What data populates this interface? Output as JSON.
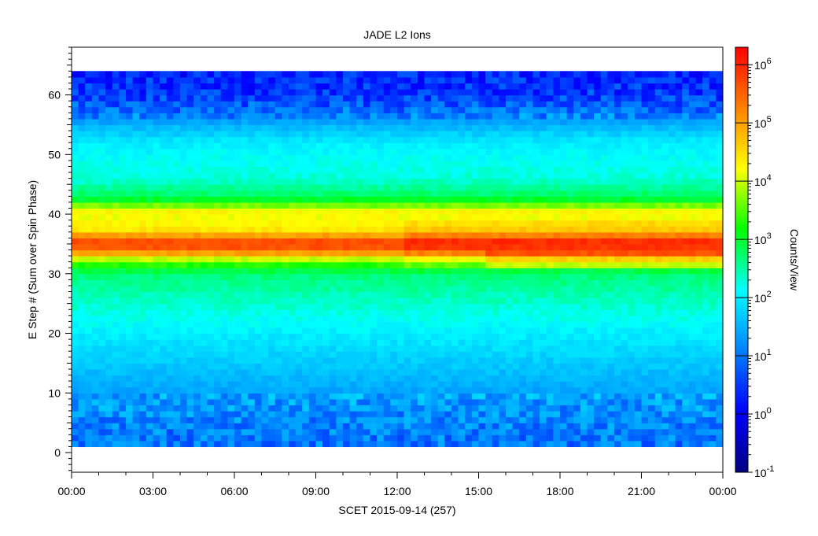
{
  "chart_data": {
    "type": "heatmap",
    "title": "JADE L2 Ions",
    "xlabel": "SCET 2015-09-14 (257)",
    "ylabel": "E Step # (Sum over Spin Phase)",
    "colorbar_label": "Counts/View",
    "x_ticks": [
      "00:00",
      "03:00",
      "06:00",
      "09:00",
      "12:00",
      "15:00",
      "18:00",
      "21:00",
      "00:00"
    ],
    "x_range_hours": [
      0,
      24
    ],
    "y_ticks": [
      0,
      10,
      20,
      30,
      40,
      50,
      60
    ],
    "ylim": [
      -3.3,
      68
    ],
    "data_y_range": [
      1,
      64
    ],
    "colorbar_exponents": [
      -1,
      0,
      1,
      2,
      3,
      4,
      5,
      6
    ],
    "colorbar_base": "10",
    "color_scale": "log",
    "colorbar_range_log10": [
      -1,
      6.3
    ],
    "colormap": [
      "#00007f",
      "#0000ff",
      "#0080ff",
      "#00ffff",
      "#00ff00",
      "#ffff00",
      "#ff8000",
      "#ff0000"
    ],
    "profile": {
      "description_points_estep": [
        1,
        5,
        12,
        20,
        26,
        30,
        32,
        33,
        34,
        36,
        37,
        38,
        39,
        40,
        41,
        42,
        43,
        46,
        52,
        55,
        57,
        60,
        64
      ],
      "log10_counts": [
        1.0,
        1.1,
        1.5,
        2.0,
        2.4,
        2.7,
        3.5,
        4.4,
        5.6,
        5.7,
        4.3,
        4.5,
        4.0,
        4.4,
        4.1,
        3.2,
        2.8,
        2.3,
        2.0,
        1.5,
        1.0,
        0.5,
        0.3
      ]
    },
    "grid": false,
    "legend": "colorbar-right"
  }
}
